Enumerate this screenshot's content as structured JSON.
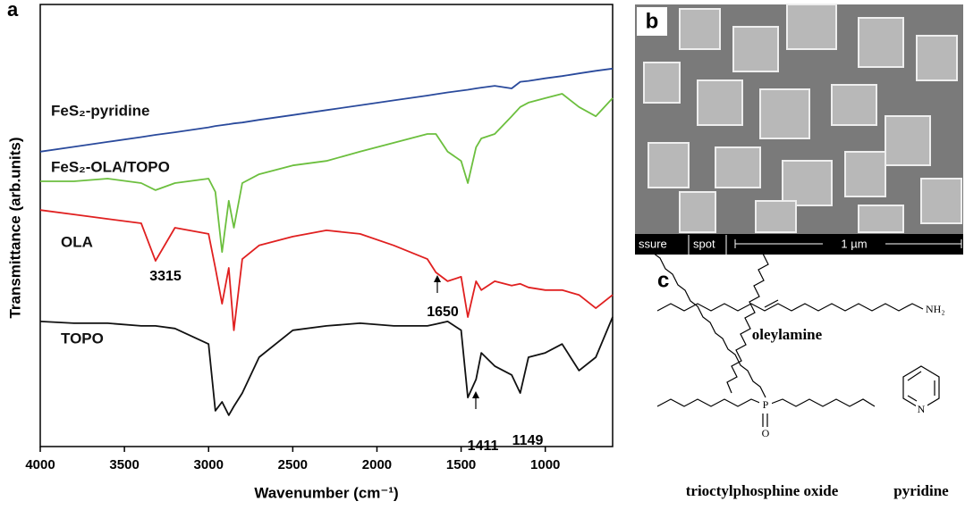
{
  "chart_data": {
    "type": "line",
    "panel": "a",
    "xlabel": "Wavenumber (cm⁻¹)",
    "ylabel": "Transmittance (arb.units)",
    "xlim": [
      4000,
      600
    ],
    "xticks": [
      4000,
      3500,
      3000,
      2500,
      2000,
      1500,
      1000
    ],
    "ylim": [
      0,
      100
    ],
    "x": [
      4000,
      3800,
      3600,
      3400,
      3315,
      3200,
      3000,
      2960,
      2920,
      2880,
      2850,
      2800,
      2700,
      2500,
      2300,
      2100,
      1900,
      1700,
      1650,
      1580,
      1500,
      1460,
      1411,
      1380,
      1300,
      1200,
      1149,
      1100,
      1000,
      900,
      800,
      700,
      600
    ],
    "series": [
      {
        "name": "FeS₂-pyridine",
        "color": "#2a4a9c",
        "values": [
          66.7,
          67.8,
          68.9,
          70.0,
          70.5,
          71.1,
          72.2,
          72.5,
          72.7,
          72.9,
          73.1,
          73.3,
          73.9,
          75.0,
          76.1,
          77.2,
          78.3,
          79.4,
          79.7,
          80.1,
          80.5,
          80.7,
          81.0,
          81.2,
          81.6,
          81.0,
          82.5,
          82.7,
          83.3,
          83.8,
          84.4,
          85.0,
          85.5
        ]
      },
      {
        "name": "FeS₂-OLA/TOPO",
        "color": "#6cbf3e",
        "values": [
          60.0,
          60.0,
          60.6,
          59.6,
          58.0,
          59.6,
          60.6,
          57.6,
          44.0,
          55.6,
          49.5,
          59.6,
          61.6,
          63.6,
          64.6,
          66.7,
          68.7,
          70.7,
          70.7,
          66.7,
          64.6,
          59.6,
          67.7,
          69.7,
          70.7,
          74.7,
          76.8,
          77.8,
          78.8,
          79.8,
          76.8,
          74.7,
          78.8
        ]
      },
      {
        "name": "OLA",
        "color": "#e02020",
        "values": [
          53.5,
          52.5,
          51.5,
          50.5,
          42.0,
          49.5,
          48.1,
          40.4,
          32.3,
          40.4,
          26.3,
          42.4,
          45.5,
          47.5,
          48.9,
          48.1,
          45.5,
          42.4,
          39.4,
          37.4,
          38.4,
          29.3,
          37.4,
          35.4,
          37.4,
          36.4,
          36.8,
          36.0,
          35.4,
          35.4,
          34.3,
          31.3,
          34.3
        ]
      },
      {
        "name": "TOPO",
        "color": "#111111",
        "values": [
          28.3,
          27.9,
          27.9,
          27.3,
          27.3,
          26.7,
          23.2,
          8.1,
          10.1,
          7.1,
          9.1,
          12.1,
          20.2,
          26.3,
          27.3,
          27.9,
          27.3,
          27.3,
          27.7,
          28.3,
          26.3,
          11.1,
          15.2,
          21.2,
          18.2,
          16.2,
          12.1,
          20.2,
          21.2,
          23.2,
          17.2,
          20.2,
          29.3
        ]
      }
    ],
    "annotations": [
      "3315",
      "1650",
      "1411",
      "1149"
    ]
  },
  "panel_b": {
    "label": "b",
    "bar": [
      "ssure",
      "spot",
      "1 µm"
    ]
  },
  "panel_c": {
    "label": "c",
    "molecules": [
      "oleylamine",
      "trioctylphosphine oxide",
      "pyridine"
    ],
    "atoms": [
      "NH₂",
      "P",
      "O",
      "N"
    ]
  }
}
